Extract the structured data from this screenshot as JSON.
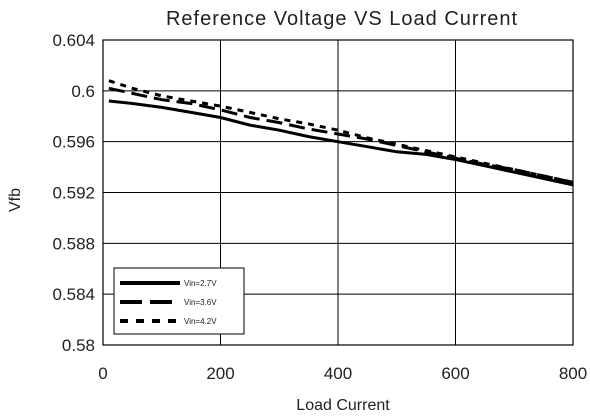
{
  "chart_data": {
    "type": "line",
    "title": "Reference Voltage VS Load Current",
    "xlabel": "Load Current",
    "ylabel": "Vfb",
    "xlim": [
      0,
      800
    ],
    "ylim": [
      0.58,
      0.604
    ],
    "xticks": [
      0,
      200,
      400,
      600,
      800
    ],
    "yticks": [
      0.58,
      0.584,
      0.588,
      0.592,
      0.596,
      0.6,
      0.604
    ],
    "ytick_labels": [
      "0.58",
      "0.584",
      "0.588",
      "0.592",
      "0.596",
      "0.6",
      "0.604"
    ],
    "grid": true,
    "legend_position": "bottom-left",
    "series": [
      {
        "name": "Vin=2.7V",
        "style": "solid",
        "color": "#000000",
        "x": [
          10,
          50,
          100,
          150,
          200,
          250,
          300,
          350,
          400,
          450,
          500,
          550,
          600,
          650,
          700,
          750,
          800
        ],
        "y": [
          0.5992,
          0.599,
          0.5987,
          0.5983,
          0.5979,
          0.5973,
          0.5969,
          0.5964,
          0.596,
          0.5956,
          0.5952,
          0.595,
          0.5946,
          0.5941,
          0.5936,
          0.5931,
          0.5926
        ]
      },
      {
        "name": "Vin=3.6V",
        "style": "dashed",
        "color": "#000000",
        "x": [
          10,
          50,
          100,
          150,
          200,
          250,
          300,
          350,
          400,
          450,
          500,
          550,
          600,
          650,
          700,
          750,
          800
        ],
        "y": [
          0.6002,
          0.5998,
          0.5993,
          0.599,
          0.5985,
          0.5979,
          0.5975,
          0.597,
          0.5966,
          0.5962,
          0.5957,
          0.5952,
          0.5947,
          0.5942,
          0.5938,
          0.5933,
          0.5928
        ]
      },
      {
        "name": "Vin=4.2V",
        "style": "dotted",
        "color": "#000000",
        "x": [
          10,
          50,
          100,
          150,
          200,
          250,
          300,
          350,
          400,
          450,
          500,
          550,
          600,
          650,
          700,
          750,
          800
        ],
        "y": [
          0.6008,
          0.6002,
          0.5996,
          0.5992,
          0.5988,
          0.5983,
          0.5978,
          0.5974,
          0.5969,
          0.5963,
          0.5958,
          0.5953,
          0.5948,
          0.5943,
          0.5938,
          0.5933,
          0.5928
        ]
      }
    ]
  }
}
